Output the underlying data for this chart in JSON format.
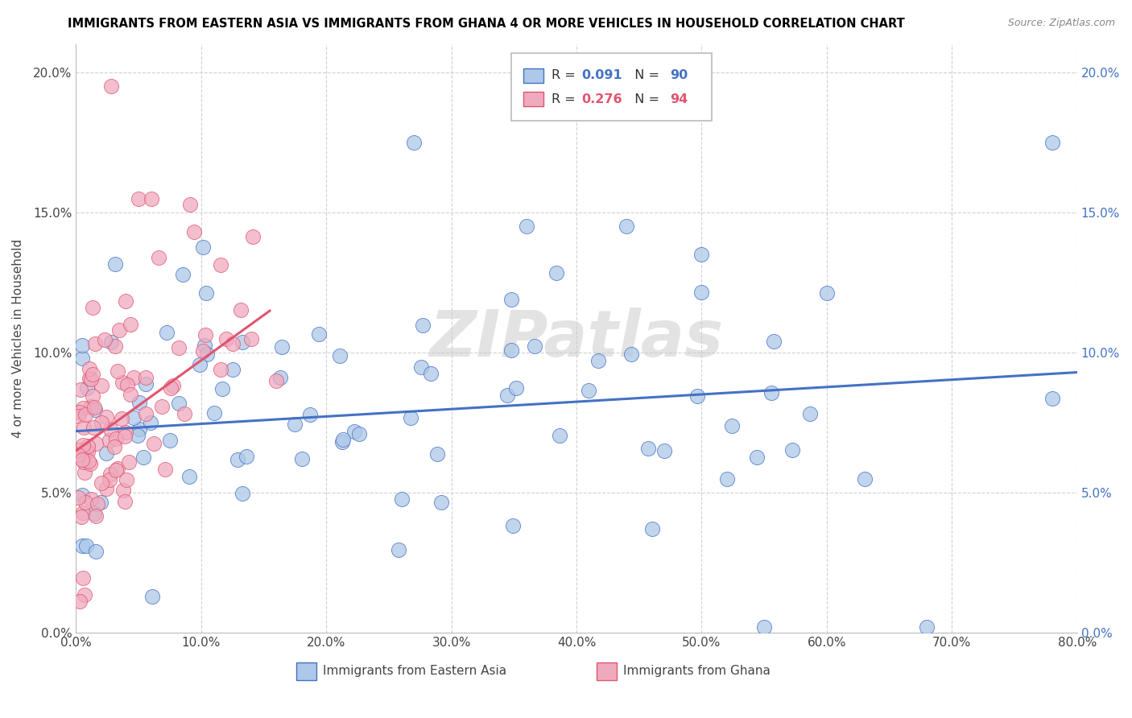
{
  "title": "IMMIGRANTS FROM EASTERN ASIA VS IMMIGRANTS FROM GHANA 4 OR MORE VEHICLES IN HOUSEHOLD CORRELATION CHART",
  "source": "Source: ZipAtlas.com",
  "ylabel": "4 or more Vehicles in Household",
  "xlim": [
    0.0,
    0.8
  ],
  "ylim": [
    0.0,
    0.21
  ],
  "xticks": [
    0.0,
    0.1,
    0.2,
    0.3,
    0.4,
    0.5,
    0.6,
    0.7,
    0.8
  ],
  "yticks": [
    0.0,
    0.05,
    0.1,
    0.15,
    0.2
  ],
  "xtick_labels": [
    "0.0%",
    "10.0%",
    "20.0%",
    "30.0%",
    "40.0%",
    "50.0%",
    "60.0%",
    "70.0%",
    "80.0%"
  ],
  "ytick_labels": [
    "0.0%",
    "5.0%",
    "10.0%",
    "15.0%",
    "20.0%"
  ],
  "legend_r1": "0.091",
  "legend_n1": "90",
  "legend_r2": "0.276",
  "legend_n2": "94",
  "color_blue": "#adc8e8",
  "color_pink": "#f0aabe",
  "color_blue_line": "#4472c4",
  "color_pink_line": "#e05570",
  "color_right_axis": "#4472c4",
  "watermark": "ZIPatlas",
  "background": "#ffffff",
  "blue_line_x": [
    0.0,
    0.8
  ],
  "blue_line_y": [
    0.072,
    0.093
  ],
  "pink_line_x": [
    0.0,
    0.155
  ],
  "pink_line_y": [
    0.065,
    0.115
  ],
  "seed": 12345,
  "n_blue": 90,
  "n_pink": 94
}
